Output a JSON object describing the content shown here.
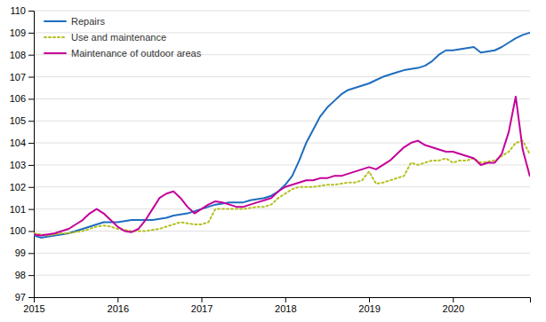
{
  "chart_data": {
    "type": "line",
    "x": [
      2015.0,
      2015.083,
      2015.167,
      2015.25,
      2015.333,
      2015.417,
      2015.5,
      2015.583,
      2015.667,
      2015.75,
      2015.833,
      2015.917,
      2016.0,
      2016.083,
      2016.167,
      2016.25,
      2016.333,
      2016.417,
      2016.5,
      2016.583,
      2016.667,
      2016.75,
      2016.833,
      2016.917,
      2017.0,
      2017.083,
      2017.167,
      2017.25,
      2017.333,
      2017.417,
      2017.5,
      2017.583,
      2017.667,
      2017.75,
      2017.833,
      2017.917,
      2018.0,
      2018.083,
      2018.167,
      2018.25,
      2018.333,
      2018.417,
      2018.5,
      2018.583,
      2018.667,
      2018.75,
      2018.833,
      2018.917,
      2019.0,
      2019.083,
      2019.167,
      2019.25,
      2019.333,
      2019.417,
      2019.5,
      2019.583,
      2019.667,
      2019.75,
      2019.833,
      2019.917,
      2020.0,
      2020.083,
      2020.167,
      2020.25,
      2020.333,
      2020.417,
      2020.5,
      2020.583,
      2020.667,
      2020.75,
      2020.833,
      2020.917
    ],
    "series": [
      {
        "name": "Repairs",
        "color": "#1f6dbf",
        "line_style": "solid",
        "values": [
          99.8,
          99.7,
          99.75,
          99.8,
          99.85,
          99.9,
          100.0,
          100.1,
          100.2,
          100.3,
          100.4,
          100.4,
          100.4,
          100.45,
          100.5,
          100.5,
          100.5,
          100.5,
          100.55,
          100.6,
          100.7,
          100.75,
          100.8,
          100.9,
          101.0,
          101.1,
          101.2,
          101.25,
          101.3,
          101.3,
          101.3,
          101.4,
          101.45,
          101.5,
          101.6,
          101.8,
          102.1,
          102.5,
          103.2,
          104.0,
          104.6,
          105.2,
          105.6,
          105.9,
          106.2,
          106.4,
          106.5,
          106.6,
          106.7,
          106.85,
          107.0,
          107.1,
          107.2,
          107.3,
          107.35,
          107.4,
          107.5,
          107.7,
          108.0,
          108.2,
          108.2,
          108.25,
          108.3,
          108.35,
          108.1,
          108.15,
          108.2,
          108.35,
          108.55,
          108.75,
          108.9,
          109.0
        ]
      },
      {
        "name": "Use and maintenance",
        "color": "#b5c020",
        "line_style": "dotted",
        "values": [
          99.9,
          99.85,
          99.8,
          99.85,
          99.9,
          99.9,
          99.95,
          100.0,
          100.1,
          100.2,
          100.25,
          100.2,
          100.1,
          100.05,
          100.0,
          100.0,
          100.0,
          100.05,
          100.1,
          100.2,
          100.3,
          100.4,
          100.35,
          100.3,
          100.3,
          100.4,
          101.0,
          101.0,
          101.0,
          101.0,
          101.0,
          101.05,
          101.1,
          101.1,
          101.2,
          101.5,
          101.7,
          101.9,
          102.0,
          102.0,
          102.0,
          102.05,
          102.1,
          102.1,
          102.15,
          102.2,
          102.2,
          102.3,
          102.7,
          102.15,
          102.2,
          102.3,
          102.4,
          102.5,
          103.1,
          103.0,
          103.1,
          103.2,
          103.2,
          103.3,
          103.1,
          103.2,
          103.2,
          103.3,
          103.1,
          103.15,
          103.2,
          103.4,
          103.6,
          104.0,
          104.1,
          103.5
        ]
      },
      {
        "name": "Maintenance of outdoor areas",
        "color": "#c4009a",
        "line_style": "solid",
        "values": [
          99.85,
          99.8,
          99.85,
          99.9,
          100.0,
          100.1,
          100.3,
          100.5,
          100.8,
          101.0,
          100.8,
          100.5,
          100.2,
          100.0,
          99.95,
          100.1,
          100.5,
          101.0,
          101.5,
          101.7,
          101.8,
          101.5,
          101.1,
          100.8,
          101.0,
          101.2,
          101.35,
          101.3,
          101.2,
          101.1,
          101.1,
          101.2,
          101.3,
          101.4,
          101.5,
          101.8,
          102.0,
          102.1,
          102.2,
          102.3,
          102.3,
          102.4,
          102.4,
          102.5,
          102.5,
          102.6,
          102.7,
          102.8,
          102.9,
          102.8,
          103.0,
          103.2,
          103.5,
          103.8,
          104.0,
          104.1,
          103.9,
          103.8,
          103.7,
          103.6,
          103.6,
          103.5,
          103.4,
          103.3,
          103.0,
          103.1,
          103.1,
          103.5,
          104.5,
          106.1,
          103.7,
          102.5
        ]
      }
    ],
    "xlim": [
      2015.0,
      2020.92
    ],
    "xticks": [
      2015,
      2016,
      2017,
      2018,
      2019,
      2020
    ],
    "ylim": [
      97,
      110
    ],
    "yticks": [
      97,
      98,
      99,
      100,
      101,
      102,
      103,
      104,
      105,
      106,
      107,
      108,
      109,
      110
    ],
    "grid": "y",
    "legend": "upper left"
  }
}
